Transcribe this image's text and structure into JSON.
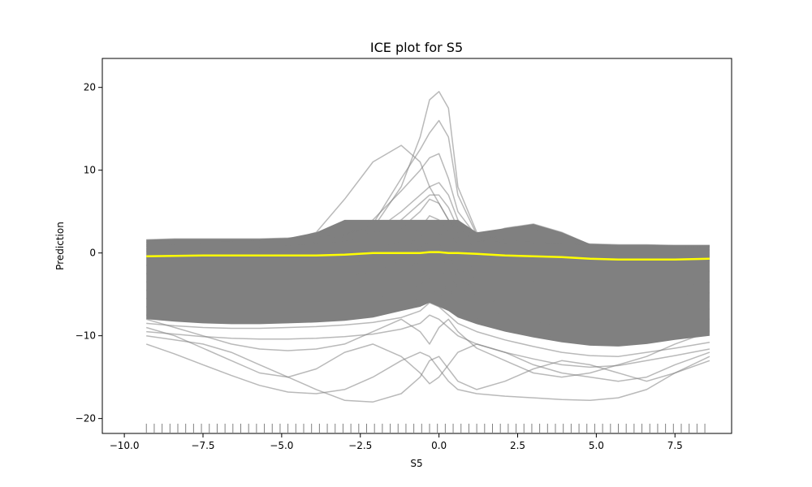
{
  "chart_data": {
    "type": "line",
    "title": "ICE plot for S5",
    "xlabel": "S5",
    "ylabel": "Prediction",
    "xlim": [
      -10.7,
      9.3
    ],
    "ylim": [
      -21.8,
      23.5
    ],
    "xticks": [
      -10.0,
      -7.5,
      -5.0,
      -2.5,
      0.0,
      2.5,
      5.0,
      7.5
    ],
    "xtick_labels": [
      "−10.0",
      "−7.5",
      "−5.0",
      "−2.5",
      "0.0",
      "2.5",
      "5.0",
      "7.5"
    ],
    "yticks": [
      -20,
      -10,
      0,
      10,
      20
    ],
    "ytick_labels": [
      "−20",
      "−10",
      "0",
      "10",
      "20"
    ],
    "grid": false,
    "legend": "none",
    "ice_color": "#808080",
    "pd_color": "#ffff00",
    "rug_color": "#808080",
    "x": [
      -9.3,
      -8.4,
      -7.5,
      -6.6,
      -5.7,
      -4.8,
      -3.9,
      -3.0,
      -2.1,
      -1.2,
      -0.6,
      -0.3,
      0.0,
      0.3,
      0.6,
      1.2,
      2.1,
      3.0,
      3.9,
      4.8,
      5.7,
      6.6,
      7.5,
      8.6
    ],
    "series": [
      {
        "name": "",
        "role": "average",
        "values": [
          -0.4,
          -0.35,
          -0.3,
          -0.3,
          -0.3,
          -0.3,
          -0.3,
          -0.2,
          0.0,
          0.0,
          0.0,
          0.1,
          0.1,
          0.0,
          0.0,
          -0.1,
          -0.3,
          -0.4,
          -0.5,
          -0.7,
          -0.8,
          -0.8,
          -0.8,
          -0.7
        ]
      },
      {
        "name": "",
        "role": "ice",
        "values": [
          1.6,
          1.7,
          1.7,
          1.7,
          1.7,
          1.8,
          2.0,
          2.4,
          3.0,
          8.0,
          14.0,
          18.5,
          19.5,
          17.5,
          8.0,
          2.5,
          1.6,
          1.4,
          1.2,
          1.1,
          1.0,
          1.0,
          0.9,
          0.9
        ]
      },
      {
        "name": "",
        "role": "ice",
        "values": [
          1.3,
          1.4,
          1.5,
          1.5,
          1.6,
          1.7,
          1.9,
          2.2,
          3.5,
          9.0,
          12.5,
          14.5,
          16.0,
          14.0,
          7.0,
          2.2,
          1.5,
          1.3,
          1.1,
          1.0,
          0.9,
          0.9,
          0.9,
          0.9
        ]
      },
      {
        "name": "",
        "role": "ice",
        "values": [
          1.0,
          1.1,
          1.2,
          1.3,
          1.4,
          1.5,
          2.5,
          6.5,
          11.0,
          13.0,
          11.0,
          8.0,
          6.0,
          4.0,
          2.5,
          1.5,
          1.2,
          1.1,
          1.0,
          1.0,
          0.9,
          0.9,
          0.9,
          0.9
        ]
      },
      {
        "name": "",
        "role": "ice",
        "values": [
          0.8,
          0.9,
          1.0,
          1.0,
          1.1,
          1.2,
          1.4,
          2.0,
          4.0,
          7.5,
          10.0,
          11.5,
          12.0,
          9.0,
          5.0,
          2.0,
          1.0,
          0.8,
          0.7,
          0.7,
          0.7,
          0.7,
          0.7,
          0.8
        ]
      },
      {
        "name": "",
        "role": "ice",
        "values": [
          0.5,
          0.6,
          0.7,
          0.7,
          0.8,
          1.0,
          1.2,
          1.5,
          2.5,
          5.0,
          7.0,
          8.0,
          8.5,
          7.0,
          4.0,
          1.8,
          3.0,
          3.5,
          2.5,
          1.0,
          0.6,
          0.6,
          0.6,
          0.7
        ]
      },
      {
        "name": "",
        "role": "ice",
        "values": [
          0.2,
          0.3,
          0.4,
          0.5,
          0.6,
          0.8,
          1.0,
          1.3,
          2.0,
          4.0,
          6.0,
          7.0,
          7.0,
          5.5,
          3.0,
          1.2,
          2.5,
          3.0,
          2.0,
          0.5,
          0.2,
          0.2,
          0.3,
          0.4
        ]
      },
      {
        "name": "",
        "role": "ice",
        "values": [
          -0.5,
          -0.4,
          -0.3,
          -0.2,
          -0.1,
          0.0,
          0.3,
          0.8,
          1.5,
          3.0,
          5.0,
          6.5,
          6.0,
          4.0,
          2.0,
          0.5,
          -0.5,
          -0.8,
          -1.0,
          -1.2,
          -1.2,
          -1.1,
          -1.0,
          -0.9
        ]
      },
      {
        "name": "",
        "role": "ice",
        "values": [
          -1.5,
          -1.4,
          -1.3,
          -1.2,
          -1.1,
          -1.0,
          -0.8,
          -0.5,
          0.2,
          1.5,
          3.0,
          4.5,
          4.0,
          2.5,
          1.0,
          -0.5,
          -1.5,
          -2.0,
          -2.5,
          -3.0,
          -3.0,
          -2.8,
          -2.5,
          -2.2
        ]
      },
      {
        "name": "",
        "role": "ice",
        "values": [
          -2.5,
          -2.4,
          -2.3,
          -2.2,
          -2.1,
          -2.0,
          -1.8,
          -1.5,
          -0.8,
          0.5,
          2.0,
          3.0,
          2.5,
          1.0,
          -0.5,
          -2.0,
          -3.0,
          -3.5,
          -4.0,
          -4.5,
          -4.5,
          -4.2,
          -4.0,
          -3.5
        ]
      },
      {
        "name": "",
        "role": "ice",
        "values": [
          -3.5,
          -3.5,
          -3.4,
          -3.3,
          -3.2,
          -3.1,
          -3.0,
          -2.8,
          -2.2,
          -1.0,
          0.5,
          1.5,
          1.0,
          -0.5,
          -2.0,
          -3.2,
          -4.2,
          -4.8,
          -5.3,
          -5.8,
          -5.8,
          -5.5,
          -5.2,
          -4.8
        ]
      },
      {
        "name": "",
        "role": "ice",
        "values": [
          -4.5,
          -4.5,
          -4.4,
          -4.3,
          -4.2,
          -4.1,
          -4.0,
          -3.8,
          -3.3,
          -2.2,
          -1.0,
          0.0,
          -0.5,
          -1.8,
          -3.0,
          -4.2,
          -5.2,
          -5.8,
          -6.3,
          -6.8,
          -6.8,
          -6.5,
          -6.2,
          -5.8
        ]
      },
      {
        "name": "",
        "role": "ice",
        "values": [
          -5.5,
          -5.5,
          -5.4,
          -5.3,
          -5.2,
          -5.1,
          -5.0,
          -4.8,
          -4.4,
          -3.5,
          -2.5,
          -1.5,
          -2.0,
          -3.0,
          -4.0,
          -5.2,
          -6.2,
          -6.8,
          -7.3,
          -7.8,
          -7.8,
          -7.5,
          -7.2,
          -6.8
        ]
      },
      {
        "name": "",
        "role": "ice",
        "values": [
          -6.5,
          -6.6,
          -6.6,
          -6.5,
          -6.4,
          -6.3,
          -6.2,
          -6.0,
          -5.6,
          -4.8,
          -4.0,
          -3.0,
          -3.5,
          -4.5,
          -5.5,
          -6.5,
          -7.5,
          -8.2,
          -8.8,
          -9.2,
          -9.3,
          -9.0,
          -8.5,
          -8.0
        ]
      },
      {
        "name": "",
        "role": "ice",
        "values": [
          -7.5,
          -7.7,
          -7.8,
          -7.8,
          -7.7,
          -7.6,
          -7.5,
          -7.3,
          -7.0,
          -6.2,
          -5.5,
          -4.5,
          -5.0,
          -6.0,
          -7.0,
          -8.0,
          -9.0,
          -9.8,
          -10.4,
          -10.8,
          -10.9,
          -10.5,
          -10.0,
          -9.4
        ]
      },
      {
        "name": "",
        "role": "ice",
        "values": [
          -8.5,
          -8.8,
          -9.0,
          -9.1,
          -9.1,
          -9.0,
          -8.9,
          -8.7,
          -8.4,
          -7.8,
          -7.0,
          -6.0,
          -6.5,
          -7.5,
          -8.5,
          -9.5,
          -10.5,
          -11.3,
          -12.0,
          -12.4,
          -12.5,
          -12.0,
          -11.5,
          -10.8
        ]
      },
      {
        "name": "",
        "role": "ice",
        "values": [
          -9.5,
          -9.8,
          -10.1,
          -10.3,
          -10.4,
          -10.4,
          -10.3,
          -10.1,
          -9.8,
          -9.2,
          -8.5,
          -7.5,
          -8.0,
          -9.0,
          -10.0,
          -11.0,
          -12.0,
          -12.8,
          -13.5,
          -13.8,
          -13.6,
          -13.0,
          -12.4,
          -11.6
        ]
      },
      {
        "name": "",
        "role": "ice",
        "values": [
          -8.0,
          -9.0,
          -10.0,
          -11.0,
          -11.6,
          -11.8,
          -11.6,
          -11.0,
          -9.5,
          -8.0,
          -9.5,
          -11.0,
          -9.0,
          -8.0,
          -9.5,
          -11.5,
          -13.0,
          -14.5,
          -15.0,
          -14.5,
          -13.5,
          -12.5,
          -11.0,
          -9.5
        ]
      },
      {
        "name": "",
        "role": "ice",
        "values": [
          -11.0,
          -12.2,
          -13.5,
          -14.8,
          -16.0,
          -16.8,
          -17.0,
          -16.5,
          -15.0,
          -13.0,
          -12.0,
          -12.5,
          -14.0,
          -15.5,
          -16.5,
          -17.0,
          -17.3,
          -17.5,
          -17.7,
          -17.8,
          -17.5,
          -16.5,
          -14.5,
          -12.5
        ]
      },
      {
        "name": "",
        "role": "ice",
        "values": [
          -9.0,
          -10.0,
          -11.5,
          -13.0,
          -14.5,
          -15.0,
          -14.0,
          -12.0,
          -11.0,
          -12.5,
          -14.5,
          -15.8,
          -15.0,
          -13.5,
          -12.0,
          -11.0,
          -12.0,
          -13.5,
          -14.5,
          -15.0,
          -15.5,
          -15.0,
          -13.5,
          -12.0
        ]
      },
      {
        "name": "",
        "role": "ice",
        "values": [
          -10.0,
          -10.5,
          -11.0,
          -12.0,
          -13.5,
          -15.0,
          -16.5,
          -17.8,
          -18.0,
          -17.0,
          -15.0,
          -13.0,
          -12.5,
          -14.0,
          -15.5,
          -16.5,
          -15.5,
          -14.0,
          -13.0,
          -13.5,
          -14.5,
          -15.5,
          -14.5,
          -13.0
        ]
      }
    ],
    "rug_x": [
      -9.3,
      -9.05,
      -8.8,
      -8.55,
      -8.3,
      -8.05,
      -7.8,
      -7.55,
      -7.3,
      -7.05,
      -6.8,
      -6.55,
      -6.3,
      -6.05,
      -5.8,
      -5.55,
      -5.3,
      -5.05,
      -4.8,
      -4.55,
      -4.3,
      -4.05,
      -3.8,
      -3.55,
      -3.3,
      -3.05,
      -2.8,
      -2.55,
      -2.3,
      -2.05,
      -1.8,
      -1.55,
      -1.3,
      -1.05,
      -0.8,
      -0.55,
      -0.3,
      -0.05,
      0.2,
      0.45,
      0.7,
      0.95,
      1.2,
      1.45,
      1.7,
      1.95,
      2.2,
      2.45,
      2.7,
      2.95,
      3.2,
      3.45,
      3.7,
      3.95,
      4.2,
      4.45,
      4.7,
      4.95,
      5.2,
      5.45,
      5.7,
      5.95,
      6.2,
      6.45,
      6.7,
      6.95,
      7.2,
      7.45,
      7.7,
      7.95,
      8.2,
      8.45
    ]
  }
}
